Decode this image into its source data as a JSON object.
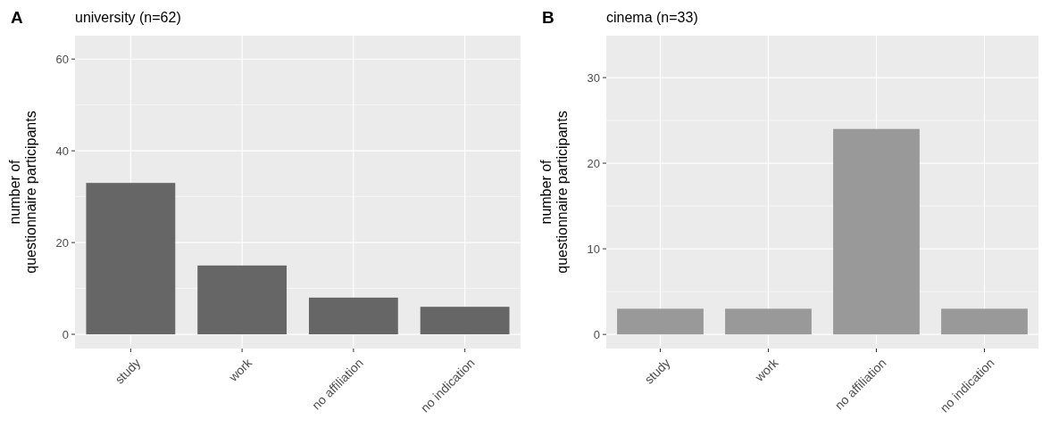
{
  "chart_data": [
    {
      "type": "bar",
      "title": "university (n=62)",
      "annotations": [
        "A"
      ],
      "ylabel": "number of\nquestionnaire participants",
      "categories": [
        "study",
        "work",
        "no affiliation",
        "no indication"
      ],
      "values": [
        33,
        15,
        8,
        6
      ],
      "color": "#666666",
      "ylim": [
        -3.1,
        65.1
      ],
      "yticks": [
        0,
        20,
        40,
        60
      ],
      "grid": true
    },
    {
      "type": "bar",
      "title": "cinema (n=33)",
      "annotations": [
        "B"
      ],
      "ylabel": "number of\nquestionnaire participants",
      "categories": [
        "study",
        "work",
        "no affiliation",
        "no indication"
      ],
      "values": [
        3,
        3,
        24,
        3
      ],
      "color": "#999999",
      "ylim": [
        -1.65,
        34.9
      ],
      "yticks": [
        0,
        10,
        20,
        30
      ],
      "grid": true
    }
  ]
}
